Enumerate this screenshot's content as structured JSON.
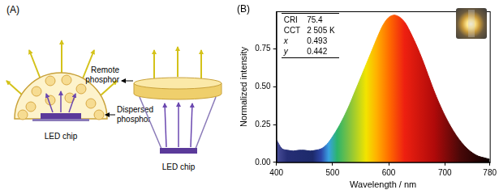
{
  "chart_data": {
    "type": "line",
    "panel_label": "(B)",
    "x_label": "Wavelength / nm",
    "y_label": "Normalized intensity",
    "x": [
      400,
      410,
      420,
      430,
      440,
      450,
      460,
      470,
      480,
      490,
      500,
      510,
      520,
      530,
      540,
      550,
      560,
      570,
      580,
      590,
      600,
      610,
      620,
      630,
      640,
      650,
      660,
      670,
      680,
      690,
      700,
      710,
      720,
      730,
      740,
      750,
      760,
      770,
      780
    ],
    "values": [
      0.15,
      0.09,
      0.08,
      0.075,
      0.08,
      0.08,
      0.075,
      0.08,
      0.09,
      0.12,
      0.17,
      0.23,
      0.3,
      0.38,
      0.47,
      0.56,
      0.65,
      0.74,
      0.83,
      0.91,
      0.96,
      0.975,
      0.96,
      0.92,
      0.85,
      0.77,
      0.68,
      0.58,
      0.48,
      0.39,
      0.31,
      0.24,
      0.18,
      0.13,
      0.09,
      0.06,
      0.04,
      0.03,
      0.02
    ],
    "xlim": [
      400,
      780
    ],
    "xticks": [
      400,
      500,
      600,
      700,
      780
    ],
    "ylim": [
      0,
      1
    ],
    "yticks": [
      {
        "value": 0,
        "label": "0.00"
      },
      {
        "value": 0.25,
        "label": "0.25"
      },
      {
        "value": 0.5,
        "label": "0.50"
      },
      {
        "value": 0.75,
        "label": "0.75"
      }
    ],
    "grid": false,
    "inset_table": {
      "rows": [
        [
          "CRI",
          "75.4"
        ],
        [
          "CCT",
          "2 505 K"
        ],
        [
          "x",
          "0.493"
        ],
        [
          "y",
          "0.442"
        ]
      ]
    }
  },
  "diagram": {
    "panel_label": "(A)",
    "dispersed": {
      "label": [
        "Dispersed",
        "phosphor"
      ],
      "chip": "LED chip"
    },
    "remote": {
      "label": [
        "Remote",
        "phosphor"
      ],
      "chip": "LED chip"
    }
  }
}
